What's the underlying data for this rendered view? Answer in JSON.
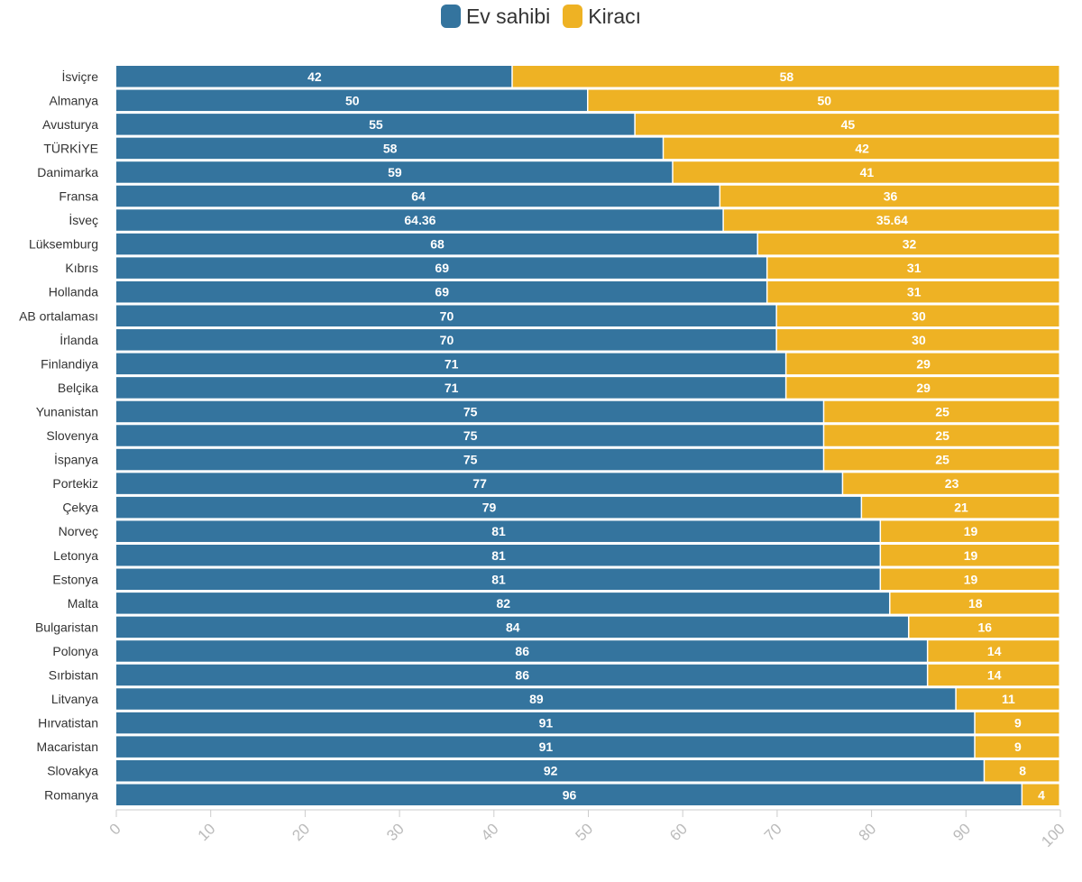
{
  "chart_data": {
    "type": "bar",
    "orientation": "horizontal",
    "stacked": true,
    "categories": [
      "İsviçre",
      "Almanya",
      "Avusturya",
      "TÜRKİYE",
      "Danimarka",
      "Fransa",
      "İsveç",
      "Lüksemburg",
      "Kıbrıs",
      "Hollanda",
      "AB ortalaması",
      "İrlanda",
      "Finlandiya",
      "Belçika",
      "Yunanistan",
      "Slovenya",
      "İspanya",
      "Portekiz",
      "Çekya",
      "Norveç",
      "Letonya",
      "Estonya",
      "Malta",
      "Bulgaristan",
      "Polonya",
      "Sırbistan",
      "Litvanya",
      "Hırvatistan",
      "Macaristan",
      "Slovakya",
      "Romanya"
    ],
    "series": [
      {
        "name": "Ev sahibi",
        "color": "#34749e",
        "values": [
          42,
          50,
          55,
          58,
          59,
          64,
          64.36,
          68,
          69,
          69,
          70,
          70,
          71,
          71,
          75,
          75,
          75,
          77,
          79,
          81,
          81,
          81,
          82,
          84,
          86,
          86,
          89,
          91,
          91,
          92,
          96
        ],
        "labels": [
          "42",
          "50",
          "55",
          "58",
          "59",
          "64",
          "64.36",
          "68",
          "69",
          "69",
          "70",
          "70",
          "71",
          "71",
          "75",
          "75",
          "75",
          "77",
          "79",
          "81",
          "81",
          "81",
          "82",
          "84",
          "86",
          "86",
          "89",
          "91",
          "91",
          "92",
          "96"
        ]
      },
      {
        "name": "Kiracı",
        "color": "#eeb224",
        "values": [
          58,
          50,
          45,
          42,
          41,
          36,
          35.64,
          32,
          31,
          31,
          30,
          30,
          29,
          29,
          25,
          25,
          25,
          23,
          21,
          19,
          19,
          19,
          18,
          16,
          14,
          14,
          11,
          9,
          9,
          8,
          4
        ],
        "labels": [
          "58",
          "50",
          "45",
          "42",
          "41",
          "36",
          "35.64",
          "32",
          "31",
          "31",
          "30",
          "30",
          "29",
          "29",
          "25",
          "25",
          "25",
          "23",
          "21",
          "19",
          "19",
          "19",
          "18",
          "16",
          "14",
          "14",
          "11",
          "9",
          "9",
          "8",
          "4"
        ]
      }
    ],
    "xlim": [
      0,
      100
    ],
    "xticks": [
      "0",
      "10",
      "20",
      "30",
      "40",
      "50",
      "60",
      "70",
      "80",
      "90",
      "100"
    ],
    "legend_position": "top-center",
    "grid": false
  }
}
